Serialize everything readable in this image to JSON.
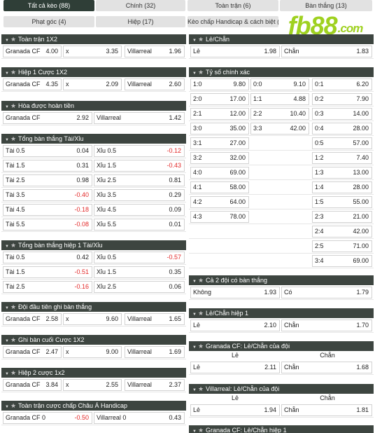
{
  "tabs": [
    {
      "label": "Tất cả kèo (88)",
      "active": true
    },
    {
      "label": "Chính (32)"
    },
    {
      "label": "Toàn trận (6)"
    },
    {
      "label": "Bàn thắng (13)"
    },
    {
      "label": "Phạt góc (4)"
    },
    {
      "label": "Hiệp (17)"
    },
    {
      "label": "Kèo chấp Handicap & cách biệt (5)"
    }
  ],
  "logo": {
    "brand": "fb88",
    "domain": ".com",
    "color": "#9fd120"
  },
  "colors": {
    "header": "#3d4540",
    "active_tab": "#2f3e37",
    "negative": "#e32a2a"
  },
  "markets": {
    "toan_tran_1x2": {
      "title": "Toàn trận 1X2",
      "rows": [
        [
          [
            "Granada CF",
            "4.00"
          ],
          [
            "x",
            "3.35"
          ],
          [
            "Villarreal",
            "1.96"
          ]
        ]
      ]
    },
    "hiep1_1x2": {
      "title": "Hiệp 1 Cược 1X2",
      "rows": [
        [
          [
            "Granada CF",
            "4.35"
          ],
          [
            "x",
            "2.09"
          ],
          [
            "Villarreal",
            "2.60"
          ]
        ]
      ]
    },
    "hoa_hoan_tien": {
      "title": "Hòa được hoàn tiền",
      "rows": [
        [
          [
            "Granada CF",
            "2.92"
          ],
          [
            "Villarreal",
            "1.42"
          ]
        ]
      ]
    },
    "tong_ban_thang": {
      "title": "Tổng bàn thắng Tài/Xỉu",
      "rows": [
        [
          [
            "Tài 0.5",
            "0.04"
          ],
          [
            "Xỉu 0.5",
            "-0.12"
          ]
        ],
        [
          [
            "Tài 1.5",
            "0.31"
          ],
          [
            "Xỉu 1.5",
            "-0.43"
          ]
        ],
        [
          [
            "Tài 2.5",
            "0.98"
          ],
          [
            "Xỉu 2.5",
            "0.81"
          ]
        ],
        [
          [
            "Tài 3.5",
            "-0.40"
          ],
          [
            "Xỉu 3.5",
            "0.29"
          ]
        ],
        [
          [
            "Tài 4.5",
            "-0.18"
          ],
          [
            "Xỉu 4.5",
            "0.09"
          ]
        ],
        [
          [
            "Tài 5.5",
            "-0.08"
          ],
          [
            "Xỉu 5.5",
            "0.01"
          ]
        ]
      ]
    },
    "tong_ban_thang_h1": {
      "title": "Tổng bàn thắng hiệp 1 Tài/Xỉu",
      "rows": [
        [
          [
            "Tài 0.5",
            "0.42"
          ],
          [
            "Xỉu 0.5",
            "-0.57"
          ]
        ],
        [
          [
            "Tài 1.5",
            "-0.51"
          ],
          [
            "Xỉu 1.5",
            "0.35"
          ]
        ],
        [
          [
            "Tài 2.5",
            "-0.16"
          ],
          [
            "Xỉu 2.5",
            "0.06"
          ]
        ]
      ]
    },
    "doi_dau_tien": {
      "title": "Đội đầu tiên ghi bàn thắng",
      "rows": [
        [
          [
            "Granada CF",
            "2.58"
          ],
          [
            "x",
            "9.60"
          ],
          [
            "Villarreal",
            "1.65"
          ]
        ]
      ]
    },
    "ghi_ban_cuoi": {
      "title": "Ghi bàn cuối Cược 1X2",
      "rows": [
        [
          [
            "Granada CF",
            "2.47"
          ],
          [
            "x",
            "9.00"
          ],
          [
            "Villarreal",
            "1.69"
          ]
        ]
      ]
    },
    "hiep2_1x2": {
      "title": "Hiệp 2 cược 1x2",
      "rows": [
        [
          [
            "Granada CF",
            "3.84"
          ],
          [
            "x",
            "2.55"
          ],
          [
            "Villarreal",
            "2.37"
          ]
        ]
      ]
    },
    "chau_a": {
      "title": "Toàn trận cược chấp Châu Á Handicap",
      "rows": [
        [
          [
            "Granada CF 0",
            "-0.50"
          ],
          [
            "Villarreal 0",
            "0.43"
          ]
        ]
      ]
    },
    "le_chan": {
      "title": "Lẻ/Chẵn",
      "rows": [
        [
          [
            "Lẻ",
            "1.98"
          ],
          [
            "Chẵn",
            "1.83"
          ]
        ]
      ]
    },
    "ty_so": {
      "title": "Tỷ số chính xác",
      "rows": [
        [
          [
            "1:0",
            "9.80"
          ],
          [
            "0:0",
            "9.10"
          ],
          [
            "0:1",
            "6.20"
          ]
        ],
        [
          [
            "2:0",
            "17.00"
          ],
          [
            "1:1",
            "4.88"
          ],
          [
            "0:2",
            "7.90"
          ]
        ],
        [
          [
            "2:1",
            "12.00"
          ],
          [
            "2:2",
            "10.40"
          ],
          [
            "0:3",
            "14.00"
          ]
        ],
        [
          [
            "3:0",
            "35.00"
          ],
          [
            "3:3",
            "42.00"
          ],
          [
            "0:4",
            "28.00"
          ]
        ],
        [
          [
            "3:1",
            "27.00"
          ],
          null,
          [
            "0:5",
            "57.00"
          ]
        ],
        [
          [
            "3:2",
            "32.00"
          ],
          null,
          [
            "1:2",
            "7.40"
          ]
        ],
        [
          [
            "4:0",
            "69.00"
          ],
          null,
          [
            "1:3",
            "13.00"
          ]
        ],
        [
          [
            "4:1",
            "58.00"
          ],
          null,
          [
            "1:4",
            "28.00"
          ]
        ],
        [
          [
            "4:2",
            "64.00"
          ],
          null,
          [
            "1:5",
            "55.00"
          ]
        ],
        [
          [
            "4:3",
            "78.00"
          ],
          null,
          [
            "2:3",
            "21.00"
          ]
        ],
        [
          null,
          null,
          [
            "2:4",
            "42.00"
          ]
        ],
        [
          null,
          null,
          [
            "2:5",
            "71.00"
          ]
        ],
        [
          null,
          null,
          [
            "3:4",
            "69.00"
          ]
        ]
      ]
    },
    "ca_2_doi": {
      "title": "Cả 2 đội có bàn thắng",
      "rows": [
        [
          [
            "Không",
            "1.93"
          ],
          [
            "Có",
            "1.79"
          ]
        ]
      ]
    },
    "le_chan_h1": {
      "title": "Lẻ/Chẵn hiệp 1",
      "rows": [
        [
          [
            "Lẻ",
            "2.10"
          ],
          [
            "Chẵn",
            "1.70"
          ]
        ]
      ]
    },
    "granada_le_chan": {
      "title": "Granada CF: Lẻ/Chẵn của đội",
      "captions": [
        "Lẻ",
        "Chẵn"
      ],
      "rows": [
        [
          [
            "Lẻ",
            "2.11"
          ],
          [
            "Chẵn",
            "1.68"
          ]
        ]
      ]
    },
    "villarreal_le_chan": {
      "title": "Villarreal: Lẻ/Chẵn của đội",
      "captions": [
        "Lẻ",
        "Chẵn"
      ],
      "rows": [
        [
          [
            "Lẻ",
            "1.94"
          ],
          [
            "Chẵn",
            "1.81"
          ]
        ]
      ]
    },
    "granada_le_chan_h1": {
      "title": "Granada CF: Lẻ/Chẵn hiệp 1",
      "rows": []
    }
  }
}
